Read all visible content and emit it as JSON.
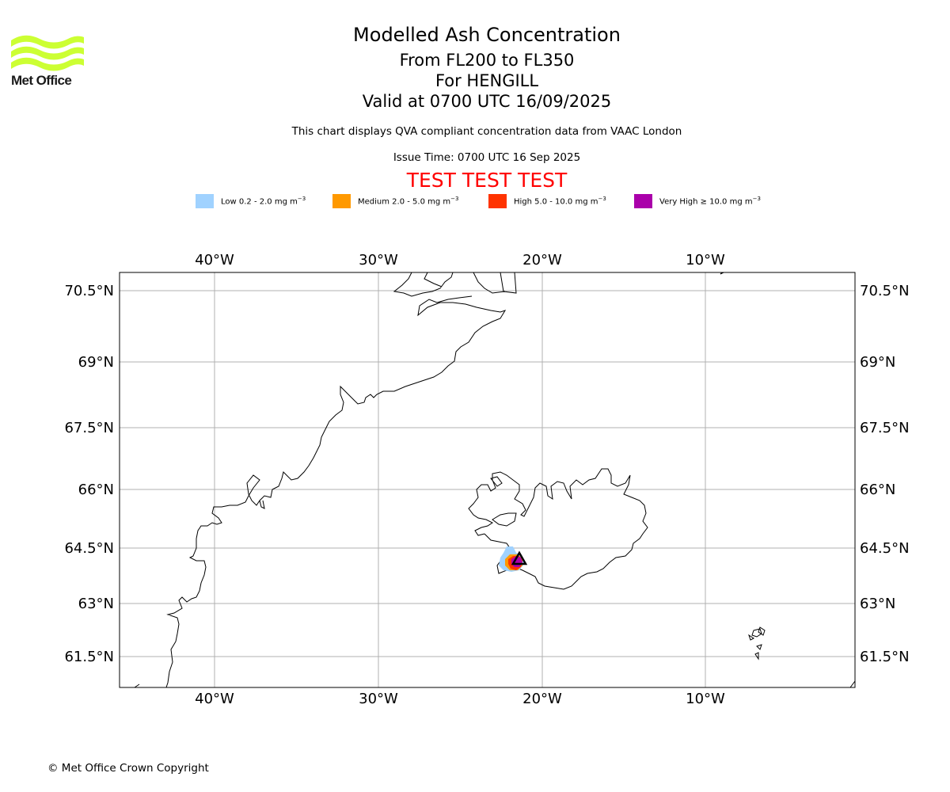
{
  "logo": {
    "word": "Met Office",
    "icon": "met-office-wave-logo",
    "color": "#ccff33"
  },
  "header": {
    "title": "Modelled Ash Concentration",
    "levels": "From FL200 to FL350",
    "volcano": "For HENGILL",
    "valid": "Valid at 0700 UTC 16/09/2025",
    "description": "This chart displays QVA compliant concentration data from VAAC London",
    "issue_time": "Issue Time: 0700 UTC 16 Sep 2025",
    "test_banner": "TEST TEST TEST",
    "test_color": "#ff0000"
  },
  "legend": {
    "unit": "mg m",
    "unit_exp": "−3",
    "items": [
      {
        "label": "Low 0.2 - 2.0",
        "color": "#a0d2ff"
      },
      {
        "label": "Medium 2.0 - 5.0",
        "color": "#ff9900"
      },
      {
        "label": "High 5.0 - 10.0",
        "color": "#ff3300"
      },
      {
        "label": "Very High ≥ 10.0",
        "color": "#aa00aa"
      }
    ]
  },
  "map": {
    "lon_ticks": [
      "40°W",
      "30°W",
      "20°W",
      "10°W"
    ],
    "lat_ticks": [
      "70.5°N",
      "69°N",
      "67.5°N",
      "66°N",
      "64.5°N",
      "63°N",
      "61.5°N"
    ],
    "grid": true,
    "volcano_marker": "triangle-icon"
  },
  "footer": {
    "copyright": "© Met Office Crown Copyright"
  }
}
